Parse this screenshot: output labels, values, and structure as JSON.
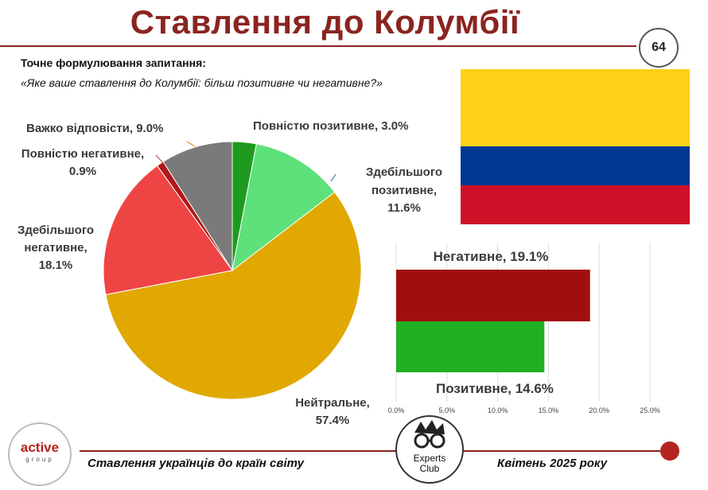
{
  "header": {
    "title": "Ставлення до Колумбії",
    "page_number": "64"
  },
  "question": {
    "label": "Точне формулювання запитання:",
    "text": "«Яке ваше ставлення до Колумбії: більш позитивне чи негативне?»"
  },
  "flag": {
    "colors": [
      "#fcd116",
      "#003893",
      "#ce1126"
    ],
    "ratios": [
      2,
      1,
      1
    ]
  },
  "chart_data": [
    {
      "type": "pie",
      "slices": [
        {
          "label": "Повністю позитивне",
          "value": 3.0,
          "text": "Повністю позитивне, 3.0%",
          "color": "#1e9a1e"
        },
        {
          "label": "Здебільшого позитивне",
          "value": 11.6,
          "text1": "Здебільшого",
          "text2": "позитивне,",
          "text3": "11.6%",
          "color": "#5ee07a"
        },
        {
          "label": "Нейтральне",
          "value": 57.4,
          "text1": "Нейтральне,",
          "text2": "57.4%",
          "color": "#e0a800"
        },
        {
          "label": "Здебільшого негативне",
          "value": 18.1,
          "text1": "Здебільшого",
          "text2": "негативне,",
          "text3": "18.1%",
          "color": "#ef4444"
        },
        {
          "label": "Повністю негативне",
          "value": 0.9,
          "text1": "Повністю негативне,",
          "text2": "0.9%",
          "color": "#b01818"
        },
        {
          "label": "Важко відповісти",
          "value": 9.0,
          "text": "Важко відповісти, 9.0%",
          "color": "#7a7a7a"
        }
      ]
    },
    {
      "type": "bar",
      "orientation": "horizontal",
      "categories": [
        "Негативне",
        "Позитивне"
      ],
      "values": [
        19.1,
        14.6
      ],
      "labels": [
        "Негативне, 19.1%",
        "Позитивне, 14.6%"
      ],
      "colors": [
        "#a00f0f",
        "#22b022"
      ],
      "xlim": [
        0,
        25
      ],
      "ticks": [
        "0.0%",
        "5.0%",
        "10.0%",
        "15.0%",
        "20.0%",
        "25.0%"
      ],
      "grid": true
    }
  ],
  "footer": {
    "logo_active": "active",
    "logo_active_sub": "group",
    "left_text": "Ставлення українців до країн світу",
    "right_text": "Квітень 2025 року",
    "logo_experts_1": "Experts",
    "logo_experts_2": "Club"
  }
}
